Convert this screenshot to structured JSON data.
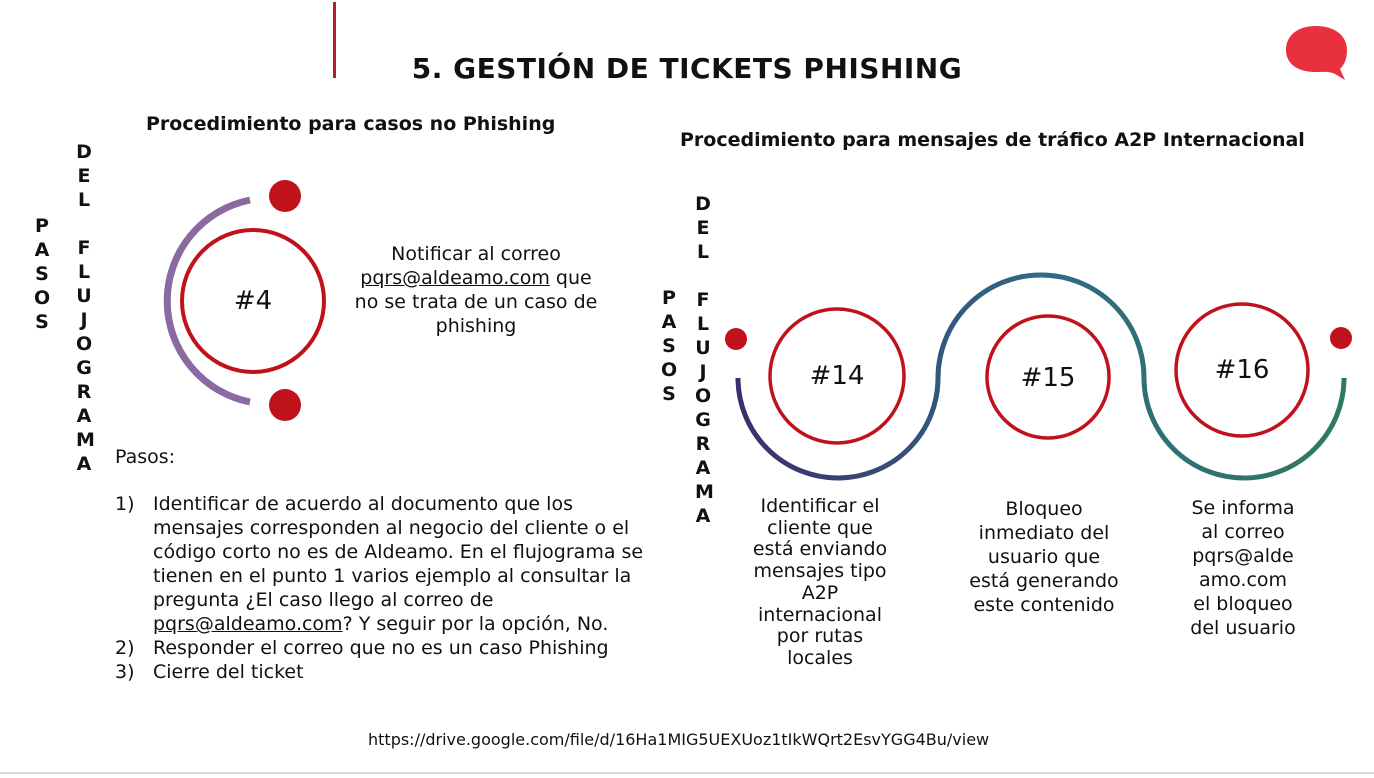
{
  "header": {
    "title": "5. GESTIÓN DE TICKETS PHISHING",
    "logo_icon": "speech-bubble-logo",
    "accent_color": "#e8303f"
  },
  "left": {
    "subtitle": "Procedimiento para casos no Phishing",
    "vertical_label_1": "PASOS",
    "vertical_label_2": "DEL",
    "vertical_label_3": "FLUJOGRAMA",
    "circle_label": "#4",
    "note_line1": "Notificar al correo",
    "note_email": "pqrs@aldeamo.com",
    "note_after_email": " que",
    "note_line3": "no se trata de un caso de",
    "note_line4": "phishing",
    "steps_heading": "Pasos:",
    "steps": [
      {
        "num": "1)",
        "text_before": "Identificar de acuerdo al documento que los mensajes corresponden al negocio del cliente o el código corto no es de Aldeamo. En el flujograma se tienen en el punto 1 varios ejemplo al consultar la pregunta ¿El caso llego al correo de ",
        "email": "pqrs@aldeamo.com",
        "text_after": "? Y seguir por la opción, No."
      },
      {
        "num": "2)",
        "text": "Responder el correo que no es un caso Phishing"
      },
      {
        "num": "3)",
        "text": "Cierre del ticket"
      }
    ]
  },
  "right": {
    "subtitle": "Procedimiento para mensajes de tráfico A2P Internacional",
    "vertical_label_1": "PASOS",
    "vertical_label_2": "DEL",
    "vertical_label_3": "FLUJOGRAMA",
    "circles": [
      {
        "label": "#14",
        "description": [
          "Identificar el",
          "cliente que",
          "está enviando",
          "mensajes tipo",
          "A2P",
          "internacional",
          "por rutas",
          "locales"
        ]
      },
      {
        "label": "#15",
        "description": [
          "Bloqueo",
          "inmediato del",
          "usuario que",
          "está generando",
          "este contenido"
        ]
      },
      {
        "label": "#16",
        "description": [
          "Se informa",
          "al correo",
          "pqrs@alde",
          "amo.com",
          "el bloqueo",
          "del usuario"
        ]
      }
    ]
  },
  "footer": {
    "url": "https://drive.google.com/file/d/16Ha1MIG5UEXUoz1tIkWQrt2EsvYGG4Bu/view"
  }
}
